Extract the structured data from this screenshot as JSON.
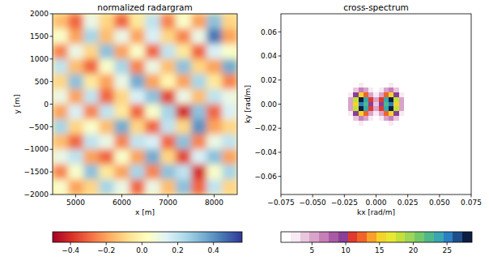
{
  "chart_data": [
    {
      "type": "heatmap",
      "title": "normalized radargram",
      "x_label": "x [m]",
      "y_label": "y [m]",
      "xlim": [
        4500,
        8500
      ],
      "ylim": [
        -2000,
        2000
      ],
      "xticks": [
        5000,
        6000,
        7000,
        8000
      ],
      "yticks": [
        {
          "value": -2000,
          "label": "−2000"
        },
        {
          "value": -1500,
          "label": "−1500"
        },
        {
          "value": -1000,
          "label": "−1000"
        },
        {
          "value": -500,
          "label": "−500"
        },
        0,
        500,
        1000,
        1500,
        2000
      ],
      "cells": [
        [
          -0.15,
          -0.3,
          0.1,
          -0.1,
          -0.3,
          -0.05,
          0.2,
          -0.25,
          0.05,
          -0.2,
          0.3,
          -0.1
        ],
        [
          0.05,
          -0.2,
          0.25,
          -0.15,
          0.1,
          -0.2,
          0.15,
          -0.1,
          -0.25,
          0.1,
          0.45,
          -0.2
        ],
        [
          -0.25,
          0.1,
          -0.1,
          0.3,
          -0.2,
          0.05,
          -0.3,
          0.2,
          -0.05,
          -0.3,
          0.15,
          0.05
        ],
        [
          0.2,
          -0.15,
          -0.3,
          0.05,
          0.25,
          -0.25,
          0.1,
          -0.15,
          0.3,
          -0.1,
          -0.2,
          0.35
        ],
        [
          -0.1,
          0.3,
          -0.05,
          -0.2,
          0.1,
          0.35,
          -0.2,
          0,
          -0.2,
          0.25,
          -0.05,
          -0.25
        ],
        [
          0.1,
          -0.2,
          0.2,
          -0.3,
          -0.1,
          0.15,
          0.3,
          -0.35,
          0.1,
          -0.15,
          0.2,
          0.1
        ],
        [
          -0.2,
          0.15,
          -0.25,
          0.2,
          -0.05,
          -0.3,
          0.05,
          0.25,
          -0.4,
          0.3,
          -0.3,
          0.15
        ],
        [
          0.25,
          -0.1,
          0.05,
          -0.15,
          0.35,
          -0.1,
          -0.3,
          0.2,
          -0.1,
          0.4,
          -0.2,
          -0.1
        ],
        [
          -0.15,
          -0.3,
          0.2,
          0.1,
          -0.25,
          0.2,
          0.15,
          -0.3,
          0.3,
          -0.25,
          0.1,
          0.2
        ],
        [
          0.1,
          0.2,
          -0.2,
          -0.3,
          0.05,
          -0.2,
          0.35,
          -0.1,
          -0.35,
          0.15,
          0.3,
          -0.2
        ],
        [
          -0.25,
          0.05,
          0.3,
          -0.05,
          -0.2,
          0.25,
          -0.25,
          0.3,
          0.2,
          -0.4,
          0.05,
          0.25
        ],
        [
          0.05,
          -0.2,
          -0.1,
          0.25,
          0.1,
          -0.3,
          0.1,
          -0.15,
          0.3,
          -0.3,
          0.2,
          -0.1
        ]
      ],
      "colorbar_range": [
        -0.5,
        0.56
      ],
      "colorbar_ticks": [
        {
          "value": -0.4,
          "label": "−0.4"
        },
        {
          "value": -0.2,
          "label": "−0.2"
        },
        {
          "value": 0,
          "label": "0.0"
        },
        0.2,
        0.4
      ]
    },
    {
      "type": "contour",
      "title": "cross-spectrum",
      "x_label": "kx [rad/m]",
      "y_label": "ky [rad/m]",
      "xlim": [
        -0.075,
        0.075
      ],
      "ylim": [
        -0.075,
        0.075
      ],
      "xticks": [
        {
          "value": -0.075,
          "label": "−0.075"
        },
        {
          "value": -0.05,
          "label": "−0.050"
        },
        {
          "value": -0.025,
          "label": "−0.025"
        },
        {
          "value": 0,
          "label": "0.000"
        },
        0.025,
        {
          "value": 0.05,
          "label": "0.050"
        },
        0.075
      ],
      "yticks": [
        {
          "value": -0.06,
          "label": "−0.06"
        },
        {
          "value": -0.04,
          "label": "−0.04"
        },
        {
          "value": -0.02,
          "label": "−0.02"
        },
        {
          "value": 0,
          "label": "0.00"
        },
        0.02,
        0.04,
        0.06
      ],
      "x": [
        -0.028,
        -0.024,
        -0.02,
        -0.016,
        -0.012,
        -0.008,
        -0.004,
        0,
        0.004,
        0.008,
        0.012,
        0.016,
        0.02,
        0.024,
        0.028
      ],
      "y": [
        0.024,
        0.02,
        0.016,
        0.012,
        0.008,
        0.004,
        0,
        -0.004,
        -0.008,
        -0.012,
        -0.016,
        -0.02,
        -0.024
      ],
      "cells": [
        [
          0,
          0,
          0,
          0,
          0.1,
          0.1,
          0,
          0,
          0,
          0.1,
          0.1,
          0,
          0,
          0,
          0
        ],
        [
          0,
          0,
          0.1,
          0.3,
          0.5,
          0.4,
          0.2,
          0.1,
          0.2,
          0.4,
          0.5,
          0.3,
          0.1,
          0,
          0
        ],
        [
          0,
          0.1,
          0.4,
          1.3,
          2.1,
          1.8,
          0.8,
          0.4,
          0.8,
          1.8,
          2.1,
          1.3,
          0.4,
          0.1,
          0
        ],
        [
          0,
          0.2,
          1.3,
          4.0,
          6.5,
          5.6,
          2.6,
          1.2,
          2.6,
          5.6,
          6.5,
          4.0,
          1.3,
          0.2,
          0
        ],
        [
          0,
          0.5,
          3.0,
          9.2,
          14.8,
          12.6,
          5.8,
          2.7,
          5.8,
          12.6,
          14.8,
          9.2,
          3.0,
          0.5,
          0
        ],
        [
          0.1,
          1.0,
          5.6,
          17.4,
          28.0,
          23.8,
          11.0,
          5.1,
          11.0,
          23.8,
          28.0,
          17.4,
          5.6,
          1.0,
          0.1
        ],
        [
          0.1,
          0.9,
          5.2,
          15.8,
          25.6,
          21.8,
          10.1,
          4.6,
          10.1,
          21.8,
          25.6,
          15.8,
          5.2,
          0.9,
          0.1
        ],
        [
          0.1,
          1.0,
          5.6,
          17.4,
          28.0,
          23.8,
          11.0,
          5.1,
          11.0,
          23.8,
          28.0,
          17.4,
          5.6,
          1.0,
          0.1
        ],
        [
          0,
          0.5,
          3.0,
          9.2,
          14.8,
          12.6,
          5.8,
          2.7,
          5.8,
          12.6,
          14.8,
          9.2,
          3.0,
          0.5,
          0
        ],
        [
          0,
          0.2,
          1.3,
          4.0,
          6.5,
          5.6,
          2.6,
          1.2,
          2.6,
          5.6,
          6.5,
          4.0,
          1.3,
          0.2,
          0
        ],
        [
          0,
          0.1,
          0.4,
          1.3,
          2.1,
          1.8,
          0.8,
          0.4,
          0.8,
          1.8,
          2.1,
          1.3,
          0.4,
          0.1,
          0
        ],
        [
          0,
          0,
          0.1,
          0.3,
          0.5,
          0.4,
          0.2,
          0.1,
          0.2,
          0.4,
          0.5,
          0.3,
          0.1,
          0,
          0
        ],
        [
          0,
          0,
          0,
          0,
          0.1,
          0.1,
          0,
          0,
          0,
          0.1,
          0.1,
          0,
          0,
          0,
          0
        ]
      ],
      "colorbar_range": [
        0.4,
        28.7
      ],
      "colorbar_ticks": [
        5,
        10,
        15,
        20,
        25
      ]
    }
  ]
}
